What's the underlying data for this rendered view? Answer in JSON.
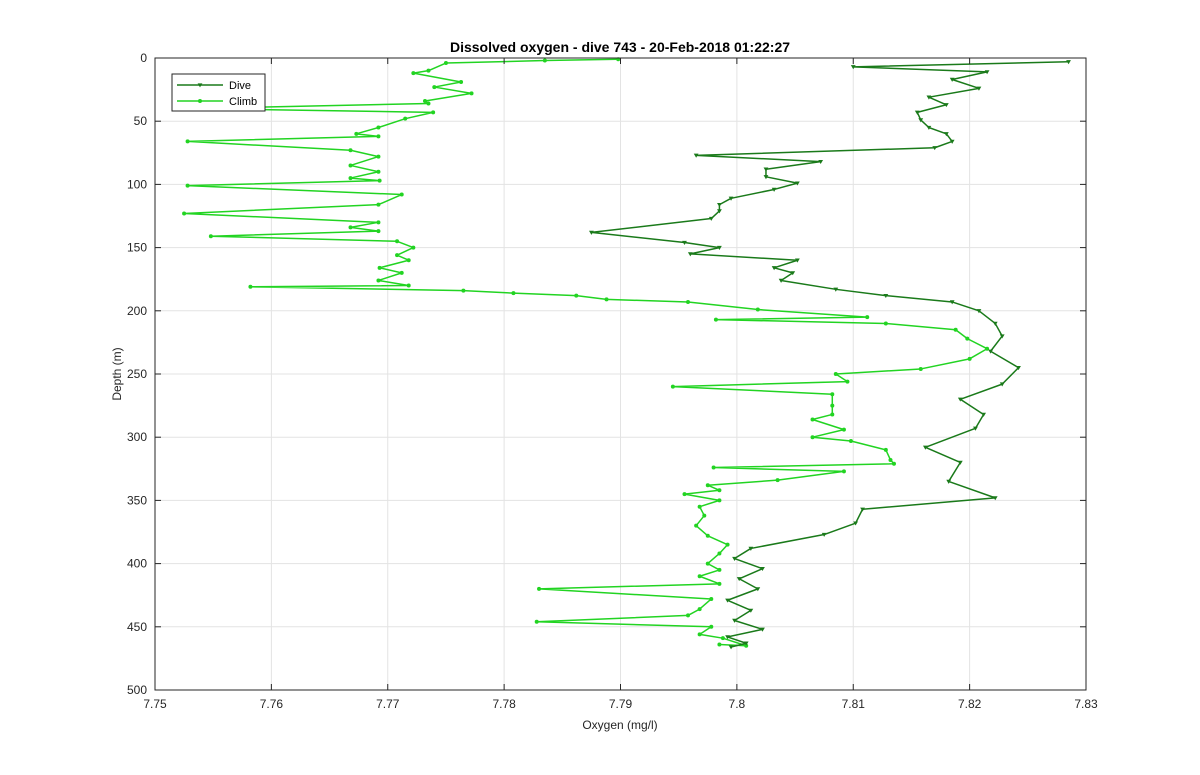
{
  "chart_data": {
    "type": "line",
    "title": "Dissolved oxygen - dive 743 - 20-Feb-2018 01:22:27",
    "xlabel": "Oxygen (mg/l)",
    "ylabel": "Depth (m)",
    "xlim": [
      7.75,
      7.83
    ],
    "ylim": [
      0,
      500
    ],
    "y_reversed": true,
    "grid": true,
    "legend_position": "top-left",
    "x_ticks": [
      "7.75",
      "7.76",
      "7.77",
      "7.78",
      "7.79",
      "7.8",
      "7.81",
      "7.82",
      "7.83"
    ],
    "y_ticks": [
      "0",
      "50",
      "100",
      "150",
      "200",
      "250",
      "300",
      "350",
      "400",
      "450",
      "500"
    ],
    "series": [
      {
        "name": "Dive",
        "color": "#1a7a1a",
        "marker": "triangle-down",
        "points": [
          [
            7.8285,
            3
          ],
          [
            7.81,
            7
          ],
          [
            7.8215,
            11
          ],
          [
            7.8185,
            17
          ],
          [
            7.8208,
            24
          ],
          [
            7.8165,
            31
          ],
          [
            7.818,
            37
          ],
          [
            7.8155,
            43
          ],
          [
            7.8158,
            49
          ],
          [
            7.8165,
            55
          ],
          [
            7.818,
            60
          ],
          [
            7.8185,
            66
          ],
          [
            7.817,
            71
          ],
          [
            7.7965,
            77
          ],
          [
            7.8072,
            82
          ],
          [
            7.8025,
            88
          ],
          [
            7.8025,
            94
          ],
          [
            7.8052,
            99
          ],
          [
            7.8032,
            104
          ],
          [
            7.7995,
            111
          ],
          [
            7.7985,
            116
          ],
          [
            7.7985,
            121
          ],
          [
            7.7978,
            127
          ],
          [
            7.7875,
            138
          ],
          [
            7.7955,
            146
          ],
          [
            7.7985,
            150
          ],
          [
            7.796,
            155
          ],
          [
            7.8052,
            160
          ],
          [
            7.8032,
            166
          ],
          [
            7.8048,
            170
          ],
          [
            7.8038,
            176
          ],
          [
            7.8085,
            183
          ],
          [
            7.8128,
            188
          ],
          [
            7.8185,
            193
          ],
          [
            7.8208,
            200
          ],
          [
            7.8222,
            210
          ],
          [
            7.8228,
            220
          ],
          [
            7.8218,
            232
          ],
          [
            7.8242,
            245
          ],
          [
            7.8228,
            258
          ],
          [
            7.8192,
            270
          ],
          [
            7.8212,
            282
          ],
          [
            7.8205,
            293
          ],
          [
            7.8162,
            308
          ],
          [
            7.8192,
            320
          ],
          [
            7.8182,
            335
          ],
          [
            7.8222,
            348
          ],
          [
            7.8108,
            357
          ],
          [
            7.8102,
            368
          ],
          [
            7.8075,
            377
          ],
          [
            7.8012,
            388
          ],
          [
            7.7998,
            396
          ],
          [
            7.8022,
            404
          ],
          [
            7.8002,
            412
          ],
          [
            7.8018,
            420
          ],
          [
            7.7992,
            429
          ],
          [
            7.8012,
            437
          ],
          [
            7.7998,
            445
          ],
          [
            7.8022,
            452
          ],
          [
            7.7992,
            458
          ],
          [
            7.8008,
            463
          ],
          [
            7.7995,
            466
          ]
        ]
      },
      {
        "name": "Climb",
        "color": "#22d422",
        "marker": "circle",
        "points": [
          [
            7.7898,
            1
          ],
          [
            7.7835,
            2
          ],
          [
            7.775,
            4
          ],
          [
            7.7735,
            10
          ],
          [
            7.7722,
            12
          ],
          [
            7.7763,
            19
          ],
          [
            7.774,
            23
          ],
          [
            7.7772,
            28
          ],
          [
            7.7732,
            34
          ],
          [
            7.7735,
            36
          ],
          [
            7.7532,
            40
          ],
          [
            7.7739,
            43
          ],
          [
            7.7715,
            48
          ],
          [
            7.7692,
            55
          ],
          [
            7.7673,
            60
          ],
          [
            7.7692,
            62
          ],
          [
            7.7528,
            66
          ],
          [
            7.7668,
            73
          ],
          [
            7.7692,
            78
          ],
          [
            7.7668,
            85
          ],
          [
            7.7692,
            90
          ],
          [
            7.7668,
            95
          ],
          [
            7.7693,
            97
          ],
          [
            7.7528,
            101
          ],
          [
            7.7712,
            108
          ],
          [
            7.7692,
            116
          ],
          [
            7.7525,
            123
          ],
          [
            7.7692,
            130
          ],
          [
            7.7668,
            134
          ],
          [
            7.7692,
            137
          ],
          [
            7.7548,
            141
          ],
          [
            7.7708,
            145
          ],
          [
            7.7722,
            150
          ],
          [
            7.7708,
            156
          ],
          [
            7.7718,
            160
          ],
          [
            7.7693,
            166
          ],
          [
            7.7712,
            170
          ],
          [
            7.7692,
            176
          ],
          [
            7.7718,
            180
          ],
          [
            7.7582,
            181
          ],
          [
            7.7765,
            184
          ],
          [
            7.7808,
            186
          ],
          [
            7.7862,
            188
          ],
          [
            7.7888,
            191
          ],
          [
            7.7958,
            193
          ],
          [
            7.8018,
            199
          ],
          [
            7.8112,
            205
          ],
          [
            7.7982,
            207
          ],
          [
            7.8128,
            210
          ],
          [
            7.8188,
            215
          ],
          [
            7.8198,
            222
          ],
          [
            7.8215,
            230
          ],
          [
            7.82,
            238
          ],
          [
            7.8158,
            246
          ],
          [
            7.8085,
            250
          ],
          [
            7.8095,
            256
          ],
          [
            7.7945,
            260
          ],
          [
            7.8082,
            266
          ],
          [
            7.8082,
            275
          ],
          [
            7.8082,
            282
          ],
          [
            7.8065,
            286
          ],
          [
            7.8092,
            294
          ],
          [
            7.8065,
            300
          ],
          [
            7.8098,
            303
          ],
          [
            7.8128,
            310
          ],
          [
            7.8132,
            318
          ],
          [
            7.8135,
            321
          ],
          [
            7.798,
            324
          ],
          [
            7.8092,
            327
          ],
          [
            7.8035,
            334
          ],
          [
            7.7975,
            338
          ],
          [
            7.7985,
            342
          ],
          [
            7.7955,
            345
          ],
          [
            7.7985,
            350
          ],
          [
            7.7968,
            355
          ],
          [
            7.7972,
            362
          ],
          [
            7.7965,
            370
          ],
          [
            7.7975,
            378
          ],
          [
            7.7992,
            385
          ],
          [
            7.7985,
            392
          ],
          [
            7.7975,
            400
          ],
          [
            7.7985,
            405
          ],
          [
            7.7968,
            410
          ],
          [
            7.7985,
            416
          ],
          [
            7.783,
            420
          ],
          [
            7.7978,
            428
          ],
          [
            7.7968,
            436
          ],
          [
            7.7958,
            441
          ],
          [
            7.7828,
            446
          ],
          [
            7.7978,
            450
          ],
          [
            7.7968,
            456
          ],
          [
            7.7988,
            459
          ],
          [
            7.8008,
            465
          ],
          [
            7.7985,
            464
          ]
        ]
      }
    ]
  }
}
